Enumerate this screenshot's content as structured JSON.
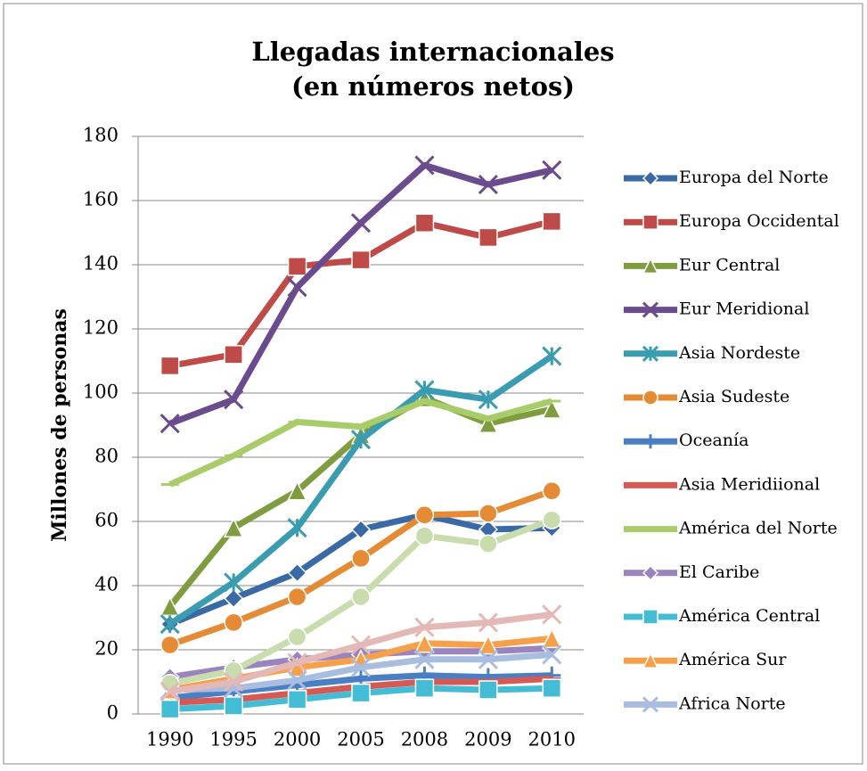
{
  "chart_data": {
    "type": "line",
    "title": "Llegadas internacionales",
    "subtitle": "(en números netos)",
    "y_label": "Millones de personas",
    "categories": [
      "1990",
      "1995",
      "2000",
      "2005",
      "2008",
      "2009",
      "2010"
    ],
    "ylim": [
      0,
      180
    ],
    "yticks": [
      0,
      20,
      40,
      60,
      80,
      100,
      120,
      140,
      160,
      180
    ],
    "grid": true,
    "legend": "right",
    "series": [
      {
        "name": "Europa del Norte",
        "color": "#3a6aa6",
        "marker": "diamond",
        "values": [
          28,
          36,
          44,
          57.5,
          62,
          57.5,
          58
        ]
      },
      {
        "name": "Europa Occidental",
        "color": "#be4b48",
        "marker": "square",
        "values": [
          108.5,
          112,
          139.5,
          141.5,
          153,
          148.5,
          153.5
        ]
      },
      {
        "name": "Eur Central",
        "color": "#7f9d3e",
        "marker": "triangle",
        "values": [
          33.5,
          58,
          69.5,
          87,
          98.5,
          90.5,
          95
        ]
      },
      {
        "name": "Eur Meridional",
        "color": "#6a4c8e",
        "marker": "x",
        "values": [
          90.5,
          98,
          133,
          153,
          171,
          165,
          169.5
        ]
      },
      {
        "name": "Asia Nordeste",
        "color": "#3a9cb0",
        "marker": "star",
        "values": [
          28,
          41,
          58,
          85.5,
          101,
          98,
          111.5
        ]
      },
      {
        "name": "Asia Sudeste",
        "color": "#e58a35",
        "marker": "circle",
        "values": [
          21.5,
          28.5,
          36.5,
          48.5,
          62,
          62.5,
          69.5
        ]
      },
      {
        "name": "Oceanía",
        "color": "#4a7fc4",
        "marker": "plus",
        "values": [
          5,
          7,
          9,
          11,
          12,
          11.5,
          12
        ]
      },
      {
        "name": "Asia Meridiional",
        "color": "#d55a55",
        "marker": "dash",
        "values": [
          3.5,
          4.5,
          6.5,
          8.5,
          10,
          10,
          11
        ]
      },
      {
        "name": "América del Norte",
        "color": "#a9cc6a",
        "marker": "dash",
        "values": [
          71.5,
          80.5,
          91,
          89.5,
          97.5,
          92,
          97.5
        ]
      },
      {
        "name": "El Caribe",
        "color": "#9b84bd",
        "marker": "diamond",
        "values": [
          11.5,
          14.5,
          17,
          18.5,
          19.5,
          19.5,
          20.5
        ]
      },
      {
        "name": "América Central",
        "color": "#45bcd6",
        "marker": "square",
        "values": [
          1.5,
          2.5,
          4.5,
          6.5,
          8,
          7.5,
          8
        ]
      },
      {
        "name": "América Sur",
        "color": "#f6a04a",
        "marker": "triangle",
        "values": [
          7.5,
          11,
          14.5,
          17,
          22,
          21.5,
          23.5
        ]
      },
      {
        "name": "Africa Norte",
        "color": "#a9bde0",
        "marker": "x",
        "values": [
          7.5,
          8,
          10.5,
          14.5,
          17,
          17,
          18.5
        ]
      },
      {
        "color": "#c9dcae",
        "marker": "circle",
        "values": [
          9.5,
          13.5,
          24,
          36.5,
          55.5,
          53,
          60.5
        ]
      },
      {
        "color": "#e3b8b6",
        "marker": "x",
        "values": [
          7,
          10,
          16,
          21.5,
          27,
          28.5,
          31
        ]
      }
    ]
  }
}
